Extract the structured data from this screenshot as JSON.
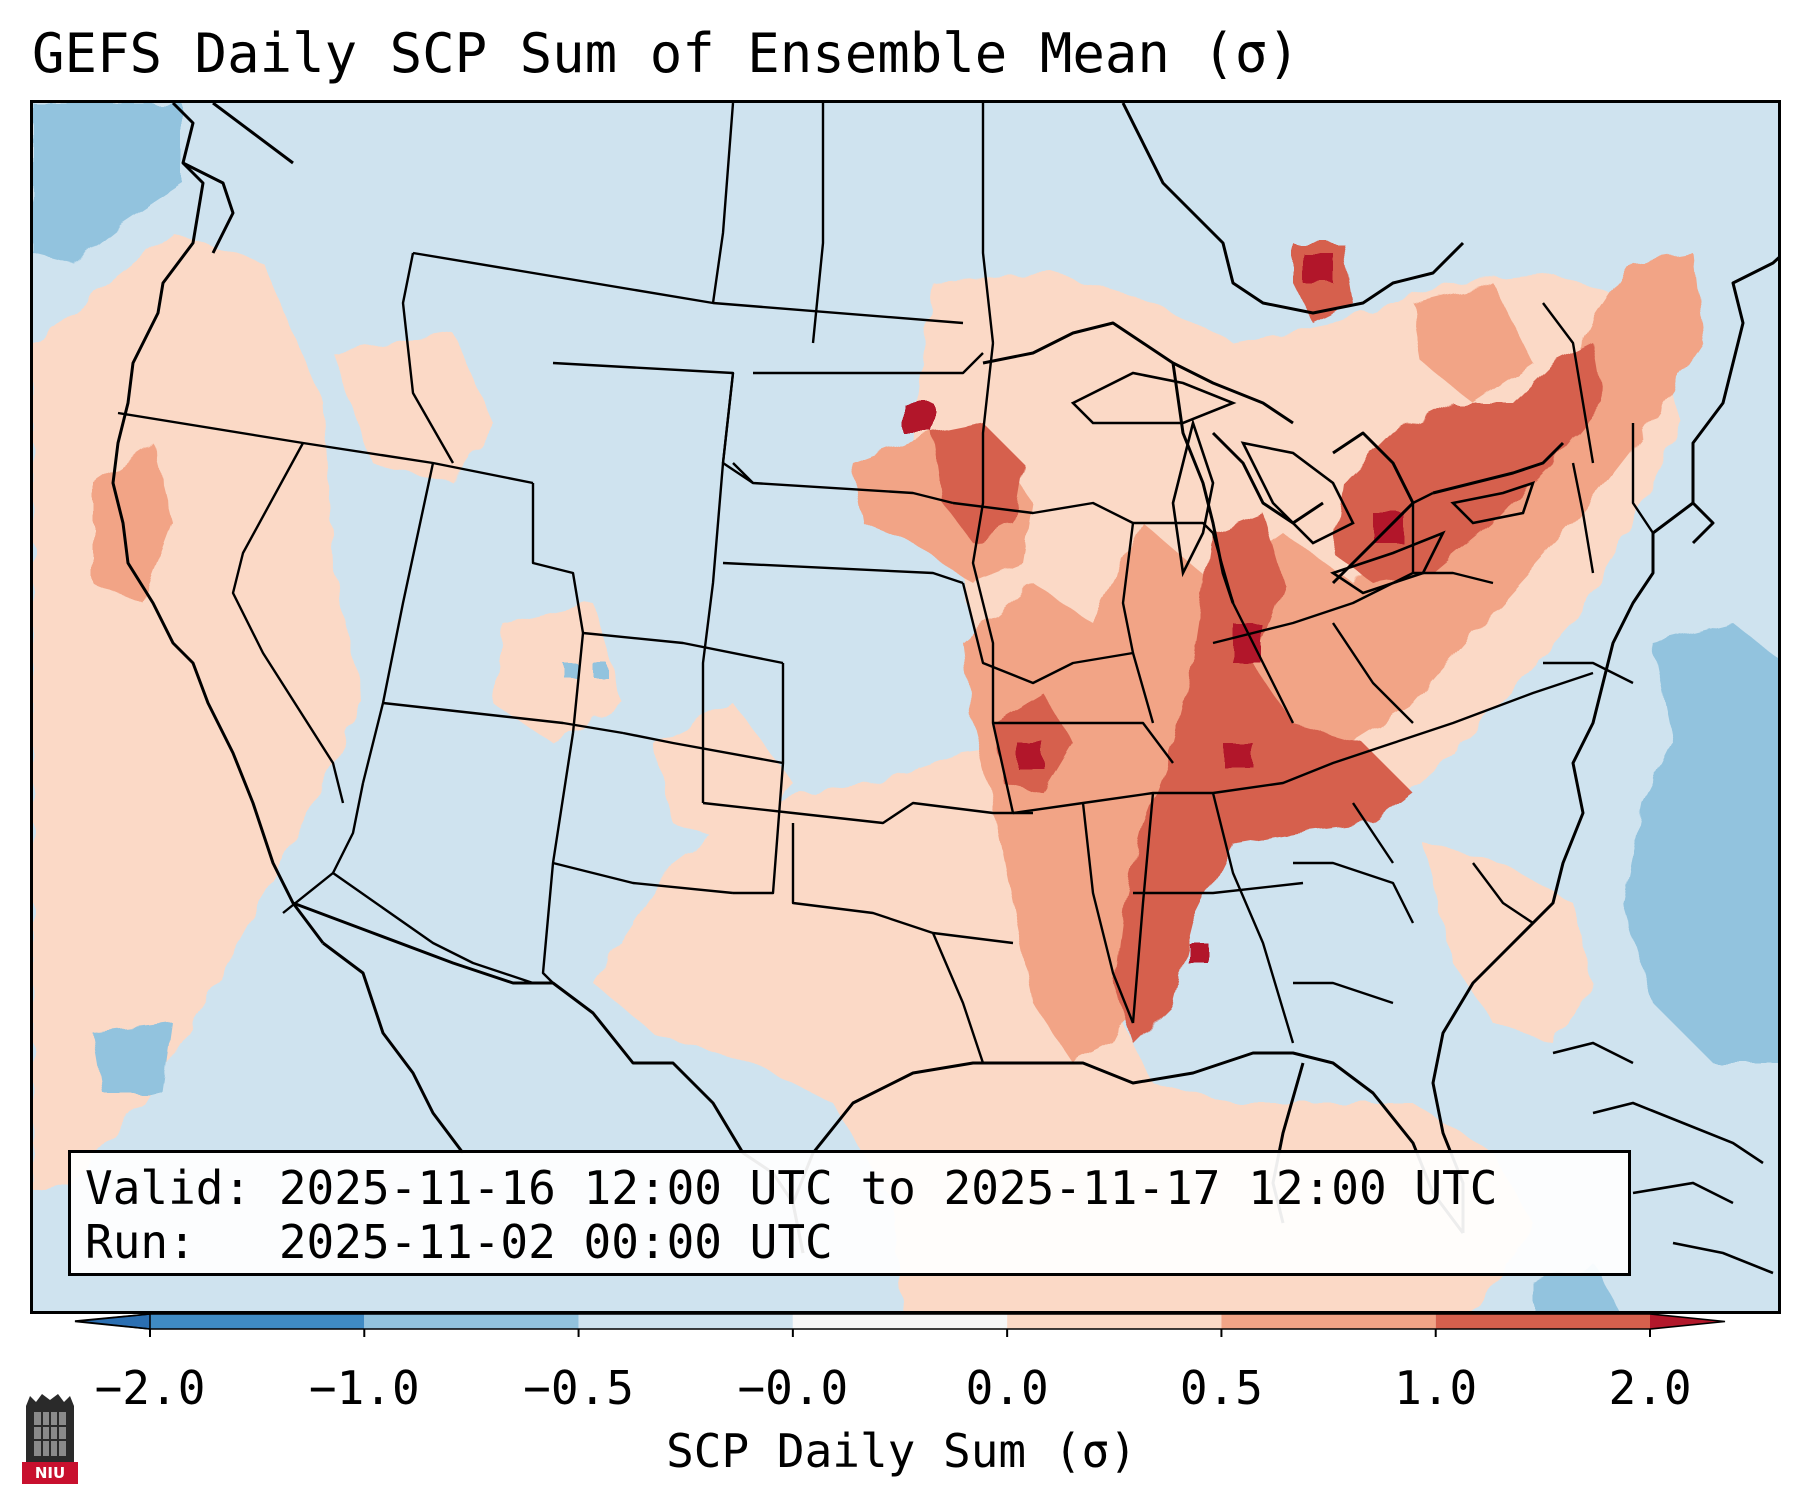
{
  "title": "GEFS Daily SCP Sum of Ensemble Mean (σ)",
  "info": {
    "valid_line": "Valid: 2025-11-16 12:00 UTC to 2025-11-17 12:00 UTC",
    "run_line": "Run:   2025-11-02 00:00 UTC"
  },
  "colorbar": {
    "title": "SCP Daily Sum (σ)",
    "tick_labels": [
      "−2.0",
      "−1.0",
      "−0.5",
      "−0.0",
      "0.0",
      "0.5",
      "1.0",
      "2.0"
    ],
    "bins": [
      {
        "range": "< -2.0",
        "color": "#2b6fb2"
      },
      {
        "range": "-2.0 to -1.0",
        "color": "#3f8bc4"
      },
      {
        "range": "-1.0 to -0.5",
        "color": "#92c3de"
      },
      {
        "range": "-0.5 to -0.0",
        "color": "#cfe3ef"
      },
      {
        "range": "-0.0 to 0.0",
        "color": "#f7f7f7"
      },
      {
        "range": "0.0 to 0.5",
        "color": "#fbd9c6"
      },
      {
        "range": "0.5 to 1.0",
        "color": "#f2a486"
      },
      {
        "range": "1.0 to 2.0",
        "color": "#d6604d"
      },
      {
        "range": "> 2.0",
        "color": "#b2182b"
      }
    ]
  },
  "map": {
    "region": "Contiguous United States",
    "variable": "SCP daily sum anomaly",
    "anomaly_areas": [
      {
        "name": "Mississippi / Tennessee / Ohio Valley",
        "category": "1.0 to 2.0"
      },
      {
        "name": "Upper Midwest (Minnesota / Iowa)",
        "category": "1.0 to 2.0"
      },
      {
        "name": "Lower Great Lakes / New York / Quebec",
        "category": "1.0 to 2.0"
      },
      {
        "name": "Gulf Coast / Southeast",
        "category": "0.0 to 0.5"
      },
      {
        "name": "West Coast",
        "category": "0.0 to 0.5"
      },
      {
        "name": "Western Atlantic",
        "category": "-1.0 to -0.5"
      }
    ]
  },
  "logo": {
    "text": "NIU",
    "icon": "niu-logo-icon"
  }
}
